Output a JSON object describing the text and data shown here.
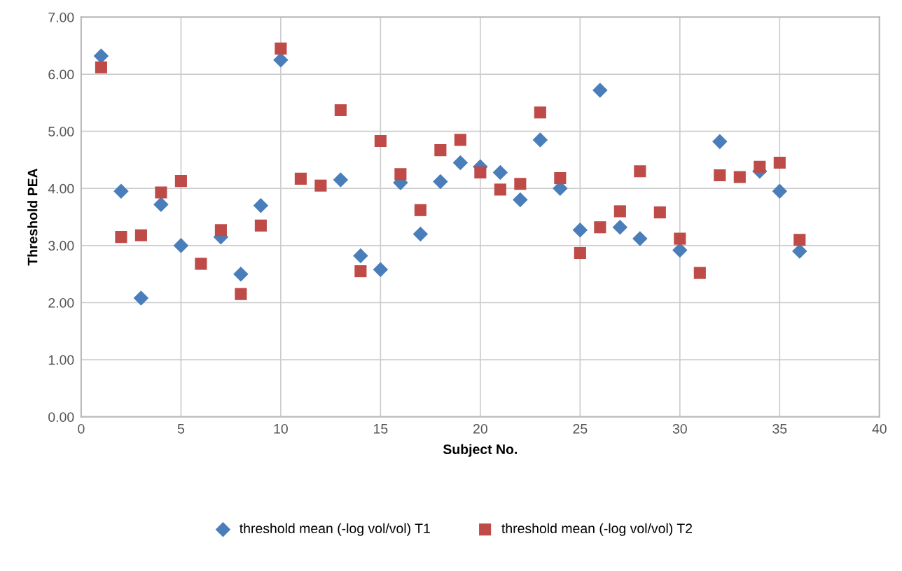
{
  "chart_data": {
    "type": "scatter",
    "xlabel": "Subject No.",
    "ylabel": "Threshold PEA",
    "x": [
      1,
      2,
      3,
      4,
      5,
      6,
      7,
      8,
      9,
      10,
      11,
      12,
      13,
      14,
      15,
      16,
      17,
      18,
      19,
      20,
      21,
      22,
      23,
      24,
      25,
      26,
      27,
      28,
      29,
      30,
      31,
      32,
      33,
      34,
      35,
      36
    ],
    "series": [
      {
        "name": "threshold mean (-log vol/vol) T1",
        "color": "#4a7ebb",
        "marker": "diamond",
        "values": [
          6.32,
          3.95,
          2.08,
          3.72,
          3.0,
          null,
          3.15,
          2.5,
          3.7,
          6.25,
          null,
          null,
          4.15,
          2.82,
          2.58,
          4.1,
          3.2,
          4.12,
          4.45,
          4.38,
          4.28,
          3.8,
          4.85,
          4.0,
          3.27,
          5.72,
          3.32,
          3.12,
          null,
          2.92,
          null,
          4.82,
          null,
          4.3,
          3.95,
          2.9
        ]
      },
      {
        "name": "threshold mean (-log vol/vol) T2",
        "color": "#be4b48",
        "marker": "square",
        "values": [
          6.12,
          3.15,
          3.18,
          3.93,
          4.13,
          2.68,
          3.27,
          2.15,
          3.35,
          6.45,
          4.17,
          4.05,
          5.37,
          2.55,
          4.83,
          4.25,
          3.62,
          4.67,
          4.85,
          4.28,
          3.98,
          4.08,
          5.33,
          4.18,
          2.87,
          3.32,
          3.6,
          4.3,
          3.58,
          3.12,
          2.52,
          4.23,
          4.2,
          4.38,
          4.45,
          3.1
        ]
      }
    ],
    "xlim": [
      0,
      40
    ],
    "xticks": [
      0,
      5,
      10,
      15,
      20,
      25,
      30,
      35,
      40
    ],
    "ylim": [
      0,
      7
    ],
    "yticks": [
      {
        "value": 0,
        "label": "0.00"
      },
      {
        "value": 1,
        "label": "1.00"
      },
      {
        "value": 2,
        "label": "2.00"
      },
      {
        "value": 3,
        "label": "3.00"
      },
      {
        "value": 4,
        "label": "4.00"
      },
      {
        "value": 5,
        "label": "5.00"
      },
      {
        "value": 6,
        "label": "6.00"
      },
      {
        "value": 7,
        "label": "7.00"
      }
    ],
    "grid": true,
    "legend": "bottom"
  }
}
